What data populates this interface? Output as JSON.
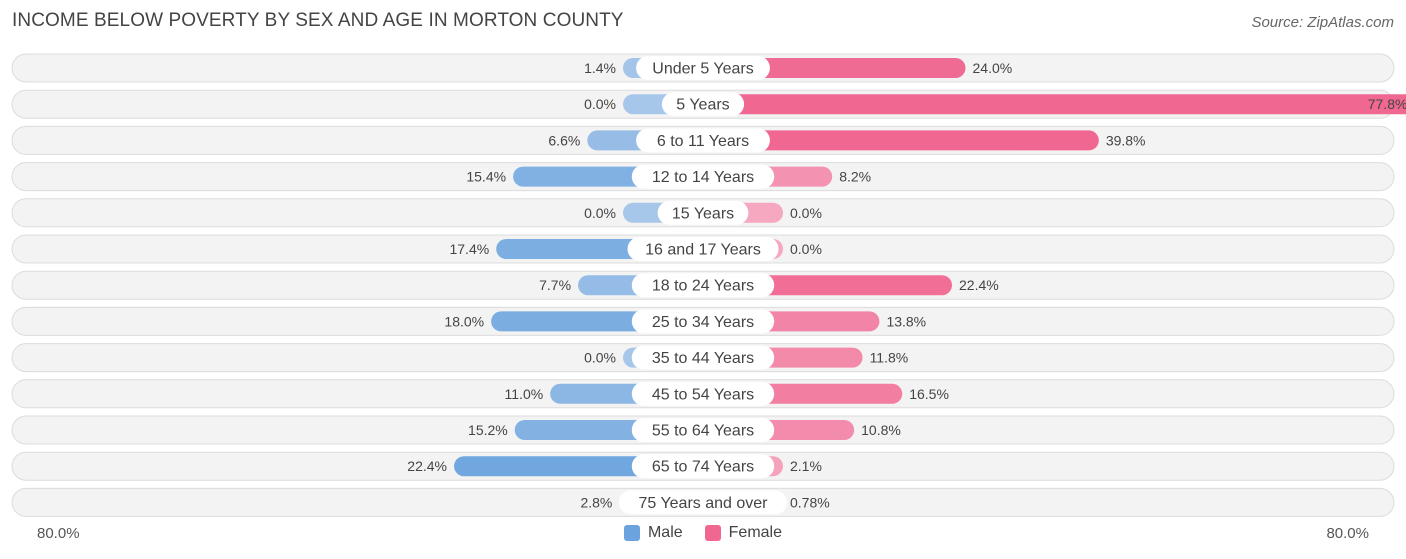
{
  "title": "INCOME BELOW POVERTY BY SEX AND AGE IN MORTON COUNTY",
  "source": "Source: ZipAtlas.com",
  "legend": {
    "male": "Male",
    "female": "Female"
  },
  "axis": {
    "left_label": "80.0%",
    "right_label": "80.0%"
  },
  "colors": {
    "male_light": "#a7c7ea",
    "male_dark": "#6aa3dd",
    "female_light": "#f5a8c0",
    "female_dark": "#f06892"
  },
  "chart_data": {
    "type": "bar",
    "orientation": "horizontal-diverging",
    "title": "INCOME BELOW POVERTY BY SEX AND AGE IN MORTON COUNTY",
    "xlim": [
      -80,
      80
    ],
    "categories": [
      "Under 5 Years",
      "5 Years",
      "6 to 11 Years",
      "12 to 14 Years",
      "15 Years",
      "16 and 17 Years",
      "18 to 24 Years",
      "25 to 34 Years",
      "35 to 44 Years",
      "45 to 54 Years",
      "55 to 64 Years",
      "65 to 74 Years",
      "75 Years and over"
    ],
    "series": [
      {
        "name": "Male",
        "values": [
          1.4,
          0.0,
          6.6,
          15.4,
          0.0,
          17.4,
          7.7,
          18.0,
          0.0,
          11.0,
          15.2,
          22.4,
          2.8
        ],
        "labels": [
          "1.4%",
          "0.0%",
          "6.6%",
          "15.4%",
          "0.0%",
          "17.4%",
          "7.7%",
          "18.0%",
          "0.0%",
          "11.0%",
          "15.2%",
          "22.4%",
          "2.8%"
        ]
      },
      {
        "name": "Female",
        "values": [
          24.0,
          77.8,
          39.8,
          8.2,
          0.0,
          0.0,
          22.4,
          13.8,
          11.8,
          16.5,
          10.8,
          2.1,
          0.78
        ],
        "labels": [
          "24.0%",
          "77.8%",
          "39.8%",
          "8.2%",
          "0.0%",
          "0.0%",
          "22.4%",
          "13.8%",
          "11.8%",
          "16.5%",
          "10.8%",
          "2.1%",
          "0.78%"
        ]
      }
    ]
  }
}
